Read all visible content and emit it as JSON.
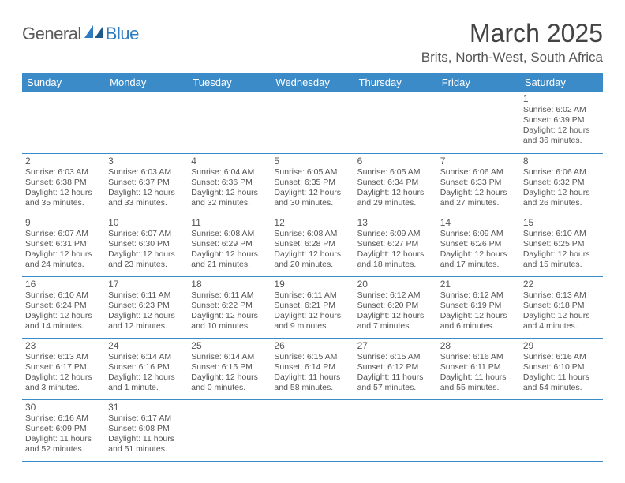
{
  "logo": {
    "text1": "General",
    "text2": "Blue"
  },
  "title": "March 2025",
  "location": "Brits, North-West, South Africa",
  "colors": {
    "header_bg": "#3b8bc9",
    "header_fg": "#ffffff",
    "border": "#3b8bc9",
    "text": "#555555",
    "logo_gray": "#5a5a5a",
    "logo_blue": "#2f7bbf"
  },
  "weekdays": [
    "Sunday",
    "Monday",
    "Tuesday",
    "Wednesday",
    "Thursday",
    "Friday",
    "Saturday"
  ],
  "weeks": [
    [
      null,
      null,
      null,
      null,
      null,
      null,
      {
        "n": "1",
        "sr": "6:02 AM",
        "ss": "6:39 PM",
        "dl": "12 hours and 36 minutes."
      }
    ],
    [
      {
        "n": "2",
        "sr": "6:03 AM",
        "ss": "6:38 PM",
        "dl": "12 hours and 35 minutes."
      },
      {
        "n": "3",
        "sr": "6:03 AM",
        "ss": "6:37 PM",
        "dl": "12 hours and 33 minutes."
      },
      {
        "n": "4",
        "sr": "6:04 AM",
        "ss": "6:36 PM",
        "dl": "12 hours and 32 minutes."
      },
      {
        "n": "5",
        "sr": "6:05 AM",
        "ss": "6:35 PM",
        "dl": "12 hours and 30 minutes."
      },
      {
        "n": "6",
        "sr": "6:05 AM",
        "ss": "6:34 PM",
        "dl": "12 hours and 29 minutes."
      },
      {
        "n": "7",
        "sr": "6:06 AM",
        "ss": "6:33 PM",
        "dl": "12 hours and 27 minutes."
      },
      {
        "n": "8",
        "sr": "6:06 AM",
        "ss": "6:32 PM",
        "dl": "12 hours and 26 minutes."
      }
    ],
    [
      {
        "n": "9",
        "sr": "6:07 AM",
        "ss": "6:31 PM",
        "dl": "12 hours and 24 minutes."
      },
      {
        "n": "10",
        "sr": "6:07 AM",
        "ss": "6:30 PM",
        "dl": "12 hours and 23 minutes."
      },
      {
        "n": "11",
        "sr": "6:08 AM",
        "ss": "6:29 PM",
        "dl": "12 hours and 21 minutes."
      },
      {
        "n": "12",
        "sr": "6:08 AM",
        "ss": "6:28 PM",
        "dl": "12 hours and 20 minutes."
      },
      {
        "n": "13",
        "sr": "6:09 AM",
        "ss": "6:27 PM",
        "dl": "12 hours and 18 minutes."
      },
      {
        "n": "14",
        "sr": "6:09 AM",
        "ss": "6:26 PM",
        "dl": "12 hours and 17 minutes."
      },
      {
        "n": "15",
        "sr": "6:10 AM",
        "ss": "6:25 PM",
        "dl": "12 hours and 15 minutes."
      }
    ],
    [
      {
        "n": "16",
        "sr": "6:10 AM",
        "ss": "6:24 PM",
        "dl": "12 hours and 14 minutes."
      },
      {
        "n": "17",
        "sr": "6:11 AM",
        "ss": "6:23 PM",
        "dl": "12 hours and 12 minutes."
      },
      {
        "n": "18",
        "sr": "6:11 AM",
        "ss": "6:22 PM",
        "dl": "12 hours and 10 minutes."
      },
      {
        "n": "19",
        "sr": "6:11 AM",
        "ss": "6:21 PM",
        "dl": "12 hours and 9 minutes."
      },
      {
        "n": "20",
        "sr": "6:12 AM",
        "ss": "6:20 PM",
        "dl": "12 hours and 7 minutes."
      },
      {
        "n": "21",
        "sr": "6:12 AM",
        "ss": "6:19 PM",
        "dl": "12 hours and 6 minutes."
      },
      {
        "n": "22",
        "sr": "6:13 AM",
        "ss": "6:18 PM",
        "dl": "12 hours and 4 minutes."
      }
    ],
    [
      {
        "n": "23",
        "sr": "6:13 AM",
        "ss": "6:17 PM",
        "dl": "12 hours and 3 minutes."
      },
      {
        "n": "24",
        "sr": "6:14 AM",
        "ss": "6:16 PM",
        "dl": "12 hours and 1 minute."
      },
      {
        "n": "25",
        "sr": "6:14 AM",
        "ss": "6:15 PM",
        "dl": "12 hours and 0 minutes."
      },
      {
        "n": "26",
        "sr": "6:15 AM",
        "ss": "6:14 PM",
        "dl": "11 hours and 58 minutes."
      },
      {
        "n": "27",
        "sr": "6:15 AM",
        "ss": "6:12 PM",
        "dl": "11 hours and 57 minutes."
      },
      {
        "n": "28",
        "sr": "6:16 AM",
        "ss": "6:11 PM",
        "dl": "11 hours and 55 minutes."
      },
      {
        "n": "29",
        "sr": "6:16 AM",
        "ss": "6:10 PM",
        "dl": "11 hours and 54 minutes."
      }
    ],
    [
      {
        "n": "30",
        "sr": "6:16 AM",
        "ss": "6:09 PM",
        "dl": "11 hours and 52 minutes."
      },
      {
        "n": "31",
        "sr": "6:17 AM",
        "ss": "6:08 PM",
        "dl": "11 hours and 51 minutes."
      },
      null,
      null,
      null,
      null,
      null
    ]
  ],
  "labels": {
    "sunrise": "Sunrise:",
    "sunset": "Sunset:",
    "daylight": "Daylight:"
  }
}
